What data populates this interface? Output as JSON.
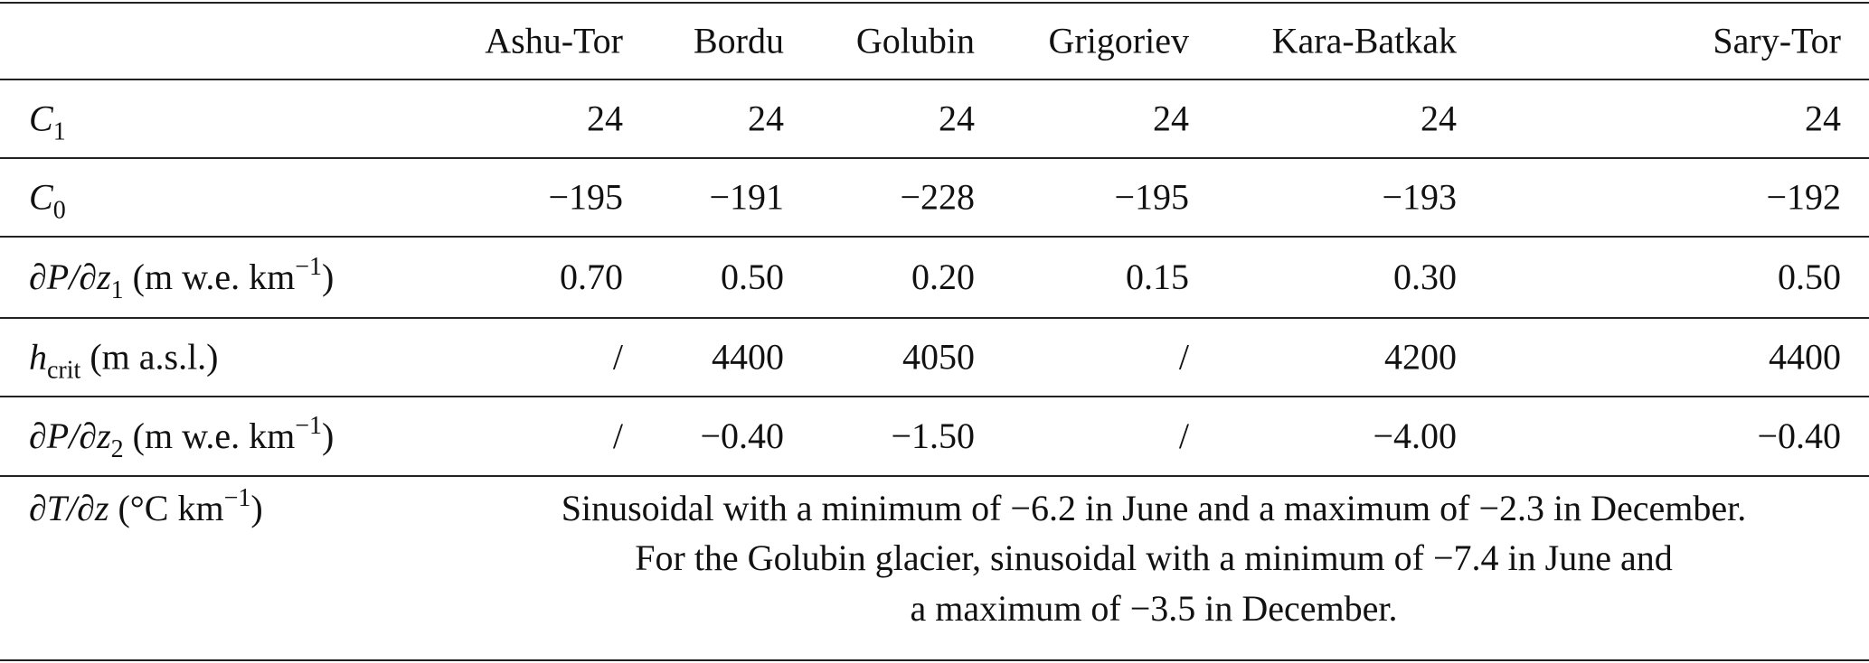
{
  "table": {
    "columns": [
      "Ashu-Tor",
      "Bordu",
      "Golubin",
      "Grigoriev",
      "Kara-Batkak",
      "Sary-Tor"
    ],
    "rows": [
      {
        "label": [
          {
            "text": "C",
            "style": "italic"
          },
          {
            "text": "1",
            "style": "sub"
          }
        ],
        "cells": [
          "24",
          "24",
          "24",
          "24",
          "24",
          "24"
        ]
      },
      {
        "label": [
          {
            "text": "C",
            "style": "italic"
          },
          {
            "text": "0",
            "style": "sub"
          }
        ],
        "cells": [
          "−195",
          "−191",
          "−228",
          "−195",
          "−193",
          "−192"
        ]
      },
      {
        "label": [
          {
            "text": "∂P/∂z",
            "style": "italic"
          },
          {
            "text": "1",
            "style": "sub"
          },
          {
            "text": " (m w.e. km",
            "style": "normal"
          },
          {
            "text": "−1",
            "style": "sup"
          },
          {
            "text": ")",
            "style": "normal"
          }
        ],
        "cells": [
          "0.70",
          "0.50",
          "0.20",
          "0.15",
          "0.30",
          "0.50"
        ]
      },
      {
        "label": [
          {
            "text": "h",
            "style": "italic"
          },
          {
            "text": "crit",
            "style": "sub"
          },
          {
            "text": " (m a.s.l.)",
            "style": "normal"
          }
        ],
        "cells": [
          "/",
          "4400",
          "4050",
          "/",
          "4200",
          "4400"
        ]
      },
      {
        "label": [
          {
            "text": "∂P/∂z",
            "style": "italic"
          },
          {
            "text": "2",
            "style": "sub"
          },
          {
            "text": " (m w.e. km",
            "style": "normal"
          },
          {
            "text": "−1",
            "style": "sup"
          },
          {
            "text": ")",
            "style": "normal"
          }
        ],
        "cells": [
          "/",
          "−0.40",
          "−1.50",
          "/",
          "−4.00",
          "−0.40"
        ]
      }
    ],
    "note_row": {
      "label": [
        {
          "text": "∂T/∂z",
          "style": "italic"
        },
        {
          "text": " (°C km",
          "style": "normal"
        },
        {
          "text": "−1",
          "style": "sup"
        },
        {
          "text": ")",
          "style": "normal"
        }
      ],
      "lines": [
        "Sinusoidal with a minimum of −6.2 in June and a maximum of −2.3 in December.",
        "For the Golubin glacier, sinusoidal with a minimum of −7.4 in June and",
        "a maximum of −3.5 in December."
      ]
    }
  }
}
